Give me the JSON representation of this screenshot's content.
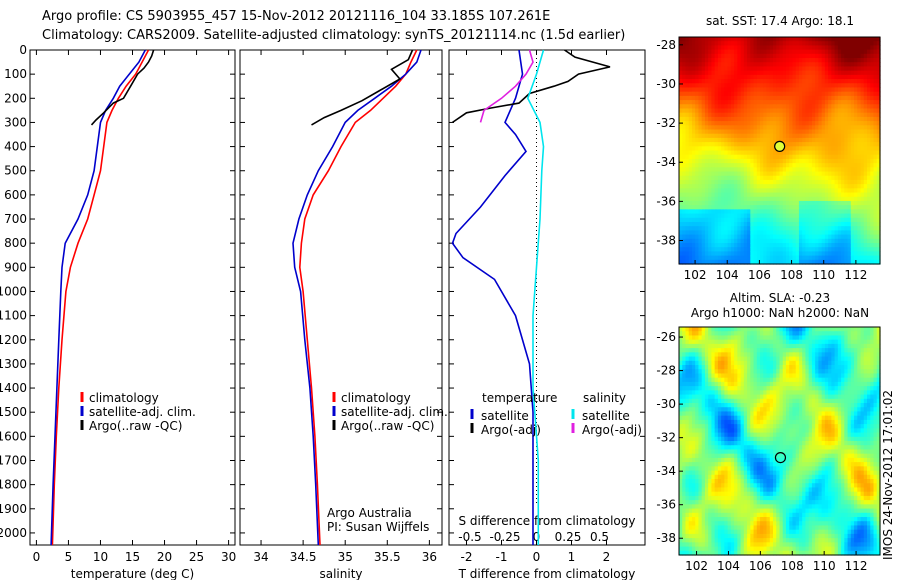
{
  "header": {
    "line1": "Argo profile: CS 5903955_457 15-Nov-2012 20121116_104 33.185S 107.261E",
    "line2": "Climatology: CARS2009. Satellite-adjusted climatology: synTS_20121114.nc (1.5d earlier)"
  },
  "colors": {
    "climatology": "#ff0000",
    "satellite": "#0000cc",
    "argo": "#000000",
    "salinity_satellite": "#00e5ee",
    "salinity_argo": "#e020e0"
  },
  "chart_data": [
    {
      "type": "line",
      "panel": "temperature",
      "xlabel": "temperature (deg C)",
      "xlim": [
        -1,
        31
      ],
      "ylim": [
        2050,
        0
      ],
      "xticks": [
        0,
        5,
        10,
        15,
        20,
        25,
        30
      ],
      "yticks": [
        0,
        100,
        200,
        300,
        400,
        500,
        600,
        700,
        800,
        900,
        1000,
        1100,
        1200,
        1300,
        1400,
        1500,
        1600,
        1700,
        1800,
        1900,
        2000
      ],
      "legend": [
        "climatology",
        "satellite-adj. clim.",
        "Argo(..raw -QC)"
      ],
      "series": [
        {
          "name": "climatology",
          "color": "#ff0000",
          "points": [
            [
              17.5,
              0
            ],
            [
              16.5,
              50
            ],
            [
              15.5,
              100
            ],
            [
              14.0,
              150
            ],
            [
              12.8,
              200
            ],
            [
              11.8,
              250
            ],
            [
              11.0,
              300
            ],
            [
              10.5,
              400
            ],
            [
              10.0,
              500
            ],
            [
              9.0,
              600
            ],
            [
              8.0,
              700
            ],
            [
              6.5,
              800
            ],
            [
              5.3,
              900
            ],
            [
              4.6,
              1000
            ],
            [
              4.0,
              1200
            ],
            [
              3.5,
              1400
            ],
            [
              3.1,
              1600
            ],
            [
              2.8,
              1800
            ],
            [
              2.5,
              2050
            ]
          ]
        },
        {
          "name": "satellite-adj. clim.",
          "color": "#0000cc",
          "points": [
            [
              17.0,
              0
            ],
            [
              16.0,
              50
            ],
            [
              14.5,
              100
            ],
            [
              13.0,
              150
            ],
            [
              12.0,
              200
            ],
            [
              10.8,
              250
            ],
            [
              10.0,
              300
            ],
            [
              9.5,
              400
            ],
            [
              9.0,
              500
            ],
            [
              8.0,
              600
            ],
            [
              6.5,
              700
            ],
            [
              4.5,
              800
            ],
            [
              4.0,
              900
            ],
            [
              3.8,
              1000
            ],
            [
              3.5,
              1200
            ],
            [
              3.2,
              1400
            ],
            [
              2.9,
              1600
            ],
            [
              2.6,
              1800
            ],
            [
              2.3,
              2050
            ]
          ]
        },
        {
          "name": "Argo(..raw -QC)",
          "color": "#000000",
          "points": [
            [
              18.3,
              0
            ],
            [
              18.0,
              25
            ],
            [
              17.5,
              50
            ],
            [
              16.8,
              75
            ],
            [
              15.8,
              100
            ],
            [
              14.7,
              150
            ],
            [
              13.6,
              200
            ],
            [
              12.0,
              220
            ],
            [
              10.5,
              260
            ],
            [
              9.3,
              290
            ],
            [
              8.6,
              310
            ]
          ]
        }
      ]
    },
    {
      "type": "line",
      "panel": "salinity",
      "xlabel": "salinity",
      "xlim": [
        33.75,
        36.15
      ],
      "ylim": [
        2050,
        0
      ],
      "xticks": [
        34,
        34.5,
        35,
        35.5,
        36
      ],
      "legend": [
        "climatology",
        "satellite-adj. clim.",
        "Argo(..raw -QC)"
      ],
      "annotations": [
        "Argo Australia",
        "PI: Susan Wijffels"
      ],
      "series": [
        {
          "name": "climatology",
          "color": "#ff0000",
          "points": [
            [
              35.85,
              0
            ],
            [
              35.78,
              50
            ],
            [
              35.72,
              100
            ],
            [
              35.6,
              150
            ],
            [
              35.45,
              200
            ],
            [
              35.3,
              250
            ],
            [
              35.12,
              300
            ],
            [
              34.95,
              400
            ],
            [
              34.8,
              500
            ],
            [
              34.62,
              600
            ],
            [
              34.52,
              700
            ],
            [
              34.48,
              800
            ],
            [
              34.46,
              900
            ],
            [
              34.5,
              1000
            ],
            [
              34.55,
              1200
            ],
            [
              34.6,
              1400
            ],
            [
              34.64,
              1600
            ],
            [
              34.67,
              1800
            ],
            [
              34.7,
              2050
            ]
          ]
        },
        {
          "name": "satellite-adj. clim.",
          "color": "#0000cc",
          "points": [
            [
              35.9,
              0
            ],
            [
              35.85,
              50
            ],
            [
              35.72,
              100
            ],
            [
              35.55,
              150
            ],
            [
              35.35,
              200
            ],
            [
              35.15,
              250
            ],
            [
              35.0,
              300
            ],
            [
              34.85,
              400
            ],
            [
              34.68,
              500
            ],
            [
              34.55,
              600
            ],
            [
              34.45,
              700
            ],
            [
              34.38,
              800
            ],
            [
              34.4,
              900
            ],
            [
              34.47,
              1000
            ],
            [
              34.52,
              1200
            ],
            [
              34.58,
              1400
            ],
            [
              34.62,
              1600
            ],
            [
              34.65,
              1800
            ],
            [
              34.68,
              2050
            ]
          ]
        },
        {
          "name": "Argo(..raw -QC)",
          "color": "#000000",
          "points": [
            [
              35.8,
              0
            ],
            [
              35.75,
              40
            ],
            [
              35.55,
              80
            ],
            [
              35.65,
              120
            ],
            [
              35.4,
              170
            ],
            [
              35.2,
              210
            ],
            [
              34.95,
              250
            ],
            [
              34.75,
              280
            ],
            [
              34.6,
              310
            ]
          ]
        }
      ]
    },
    {
      "type": "line",
      "panel": "differences",
      "xlabel_bottom": "T difference from climatology",
      "xlabel_top": "S difference from climatology",
      "xlim": [
        -2.5,
        3.1
      ],
      "ylim": [
        2050,
        0
      ],
      "xticks_T": [
        -2,
        -1,
        0,
        1,
        2
      ],
      "xticks_S": [
        "-0.5",
        "-0.25",
        "0",
        "0.25",
        "0.5"
      ],
      "zero_line": true,
      "legend_temperature": [
        "temperature",
        "satellite",
        "Argo(-adj)"
      ],
      "legend_salinity": [
        "salinity",
        "satellite",
        "Argo(-adj)"
      ],
      "series": [
        {
          "name": "temperature satellite",
          "color": "#0000cc",
          "points": [
            [
              -0.5,
              0
            ],
            [
              -0.4,
              100
            ],
            [
              -0.6,
              200
            ],
            [
              -0.9,
              300
            ],
            [
              -0.6,
              350
            ],
            [
              -0.3,
              420
            ],
            [
              -0.9,
              520
            ],
            [
              -1.6,
              650
            ],
            [
              -2.3,
              760
            ],
            [
              -2.4,
              800
            ],
            [
              -2.1,
              860
            ],
            [
              -1.2,
              950
            ],
            [
              -0.6,
              1100
            ],
            [
              -0.2,
              1300
            ],
            [
              -0.1,
              1500
            ],
            [
              -0.1,
              1700
            ],
            [
              -0.1,
              2050
            ]
          ]
        },
        {
          "name": "temperature Argo(-adj)",
          "color": "#000000",
          "points": [
            [
              0.8,
              0
            ],
            [
              1.1,
              30
            ],
            [
              2.1,
              70
            ],
            [
              1.2,
              100
            ],
            [
              0.9,
              130
            ],
            [
              0.5,
              150
            ],
            [
              -0.2,
              180
            ],
            [
              -0.5,
              220
            ],
            [
              -1.3,
              240
            ],
            [
              -2.0,
              260
            ],
            [
              -2.4,
              300
            ]
          ]
        },
        {
          "name": "salinity satellite",
          "color": "#00e5ee",
          "points": [
            [
              0.2,
              0
            ],
            [
              0.0,
              100
            ],
            [
              -0.25,
              200
            ],
            [
              0.1,
              300
            ],
            [
              0.2,
              400
            ],
            [
              0.15,
              500
            ],
            [
              0.1,
              700
            ],
            [
              0.0,
              900
            ],
            [
              -0.1,
              1100
            ],
            [
              -0.1,
              1400
            ],
            [
              0.05,
              1700
            ],
            [
              0.05,
              2050
            ]
          ]
        },
        {
          "name": "salinity Argo(-adj)",
          "color": "#e020e0",
          "points": [
            [
              -0.2,
              0
            ],
            [
              -0.1,
              50
            ],
            [
              -0.3,
              100
            ],
            [
              -0.6,
              150
            ],
            [
              -1.0,
              200
            ],
            [
              -1.5,
              250
            ],
            [
              -1.6,
              300
            ]
          ]
        }
      ]
    },
    {
      "type": "heatmap",
      "panel": "map-sst",
      "title": "sat. SST: 17.4 Argo: 18.1",
      "xticks": [
        102,
        104,
        106,
        108,
        110,
        112
      ],
      "yticks": [
        -28,
        -30,
        -32,
        -34,
        -36,
        -38
      ],
      "xlim": [
        101,
        113.5
      ],
      "ylim": [
        -39.2,
        -27.6
      ],
      "marker": [
        107.26,
        -33.19
      ]
    },
    {
      "type": "heatmap",
      "panel": "map-sla",
      "title_line1": "Altim. SLA: -0.23",
      "title_line2": "Argo h1000: NaN h2000: NaN",
      "xticks": [
        102,
        104,
        106,
        108,
        110,
        112
      ],
      "yticks": [
        -26,
        -28,
        -30,
        -32,
        -34,
        -36,
        -38
      ],
      "xlim": [
        100.9,
        113.5
      ],
      "ylim": [
        -39.0,
        -25.4
      ],
      "marker": [
        107.26,
        -33.19
      ]
    }
  ],
  "footer": {
    "stamp": "IMOS 24-Nov-2012 17:01:02"
  }
}
